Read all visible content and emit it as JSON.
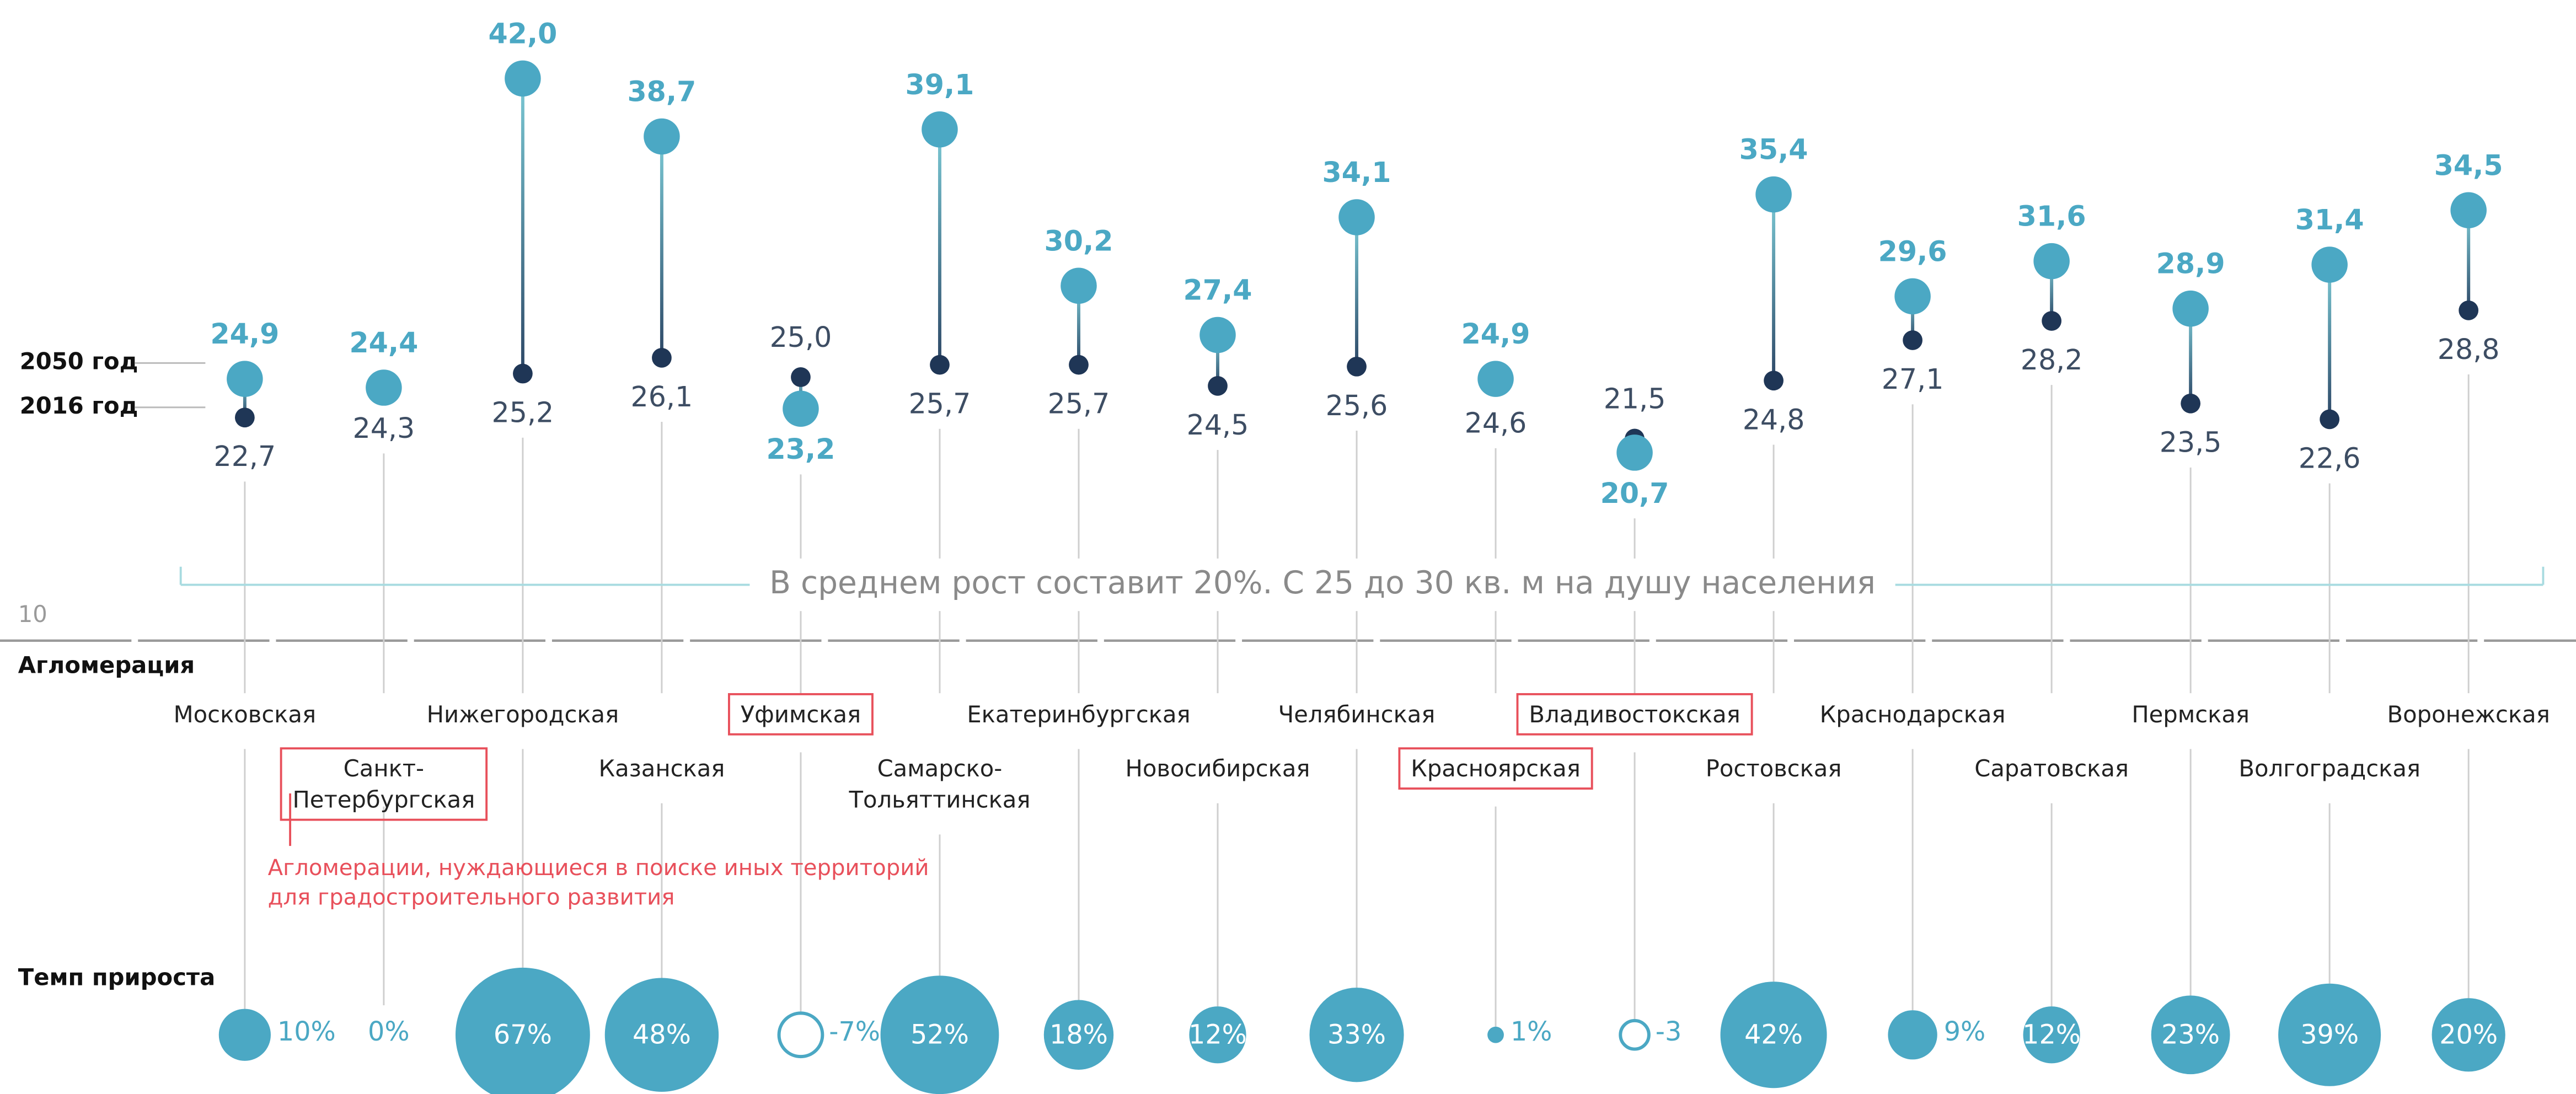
{
  "chart_data": {
    "type": "dumbbell",
    "categories": [
      "Московская",
      "Санкт-Петербургская",
      "Нижегородская",
      "Казанская",
      "Уфимская",
      "Самарско-Тольяттинская",
      "Екатеринбургская",
      "Новосибирская",
      "Челябинская",
      "Красноярская",
      "Владивостокская",
      "Ростовская",
      "Краснодарская",
      "Саратовская",
      "Пермская",
      "Волгоградская",
      "Воронежская"
    ],
    "highlighted": [
      false,
      true,
      false,
      false,
      true,
      false,
      false,
      false,
      false,
      true,
      true,
      false,
      false,
      false,
      false,
      false,
      false
    ],
    "highlight_color": "#e8505b",
    "highlight_note": [
      "Агломерации, нуждающиеся в поиске иных территорий",
      "для градостроительного развития"
    ],
    "series": [
      {
        "name": "2050 год",
        "color": "#4ba8c4",
        "values": [
          24.9,
          24.4,
          42.0,
          38.7,
          23.2,
          39.1,
          30.2,
          27.4,
          34.1,
          24.9,
          20.7,
          35.4,
          29.6,
          31.6,
          28.9,
          31.4,
          34.5
        ],
        "value_labels": [
          "24,9",
          "24,4",
          "42,0",
          "38,7",
          "23,2",
          "39,1",
          "30,2",
          "27,4",
          "34,1",
          "24,9",
          "20,7",
          "35,4",
          "29,6",
          "31,6",
          "28,9",
          "31,4",
          "34,5"
        ]
      },
      {
        "name": "2016 год",
        "color": "#1f3656",
        "values": [
          22.7,
          24.3,
          25.2,
          26.1,
          25.0,
          25.7,
          25.7,
          24.5,
          25.6,
          24.6,
          21.5,
          24.8,
          27.1,
          28.2,
          23.5,
          22.6,
          28.8
        ],
        "value_labels": [
          "22,7",
          "24,3",
          "25,2",
          "26,1",
          "25,0",
          "25,7",
          "25,7",
          "24,5",
          "25,6",
          "24,6",
          "21,5",
          "24,8",
          "27,1",
          "28,2",
          "23,5",
          "22,6",
          "28,8"
        ]
      }
    ],
    "growth": {
      "name": "Темп прироста",
      "color": "#4ba8c4",
      "values": [
        10,
        0,
        67,
        48,
        -7,
        52,
        18,
        12,
        33,
        1,
        -3,
        42,
        9,
        12,
        23,
        39,
        20
      ],
      "value_labels": [
        "10%",
        "0%",
        "67%",
        "48%",
        "-7%",
        "52%",
        "18%",
        "12%",
        "33%",
        "1%",
        "-3",
        "42%",
        "9%",
        "12%",
        "23%",
        "39%",
        "20%"
      ]
    },
    "category_axis_label": "Агломерация",
    "annotation": "В среднем рост составит 20%. С 25 до 30 кв. м на душу населения",
    "ylim": [
      10,
      46
    ],
    "yticks": [
      10
    ]
  }
}
